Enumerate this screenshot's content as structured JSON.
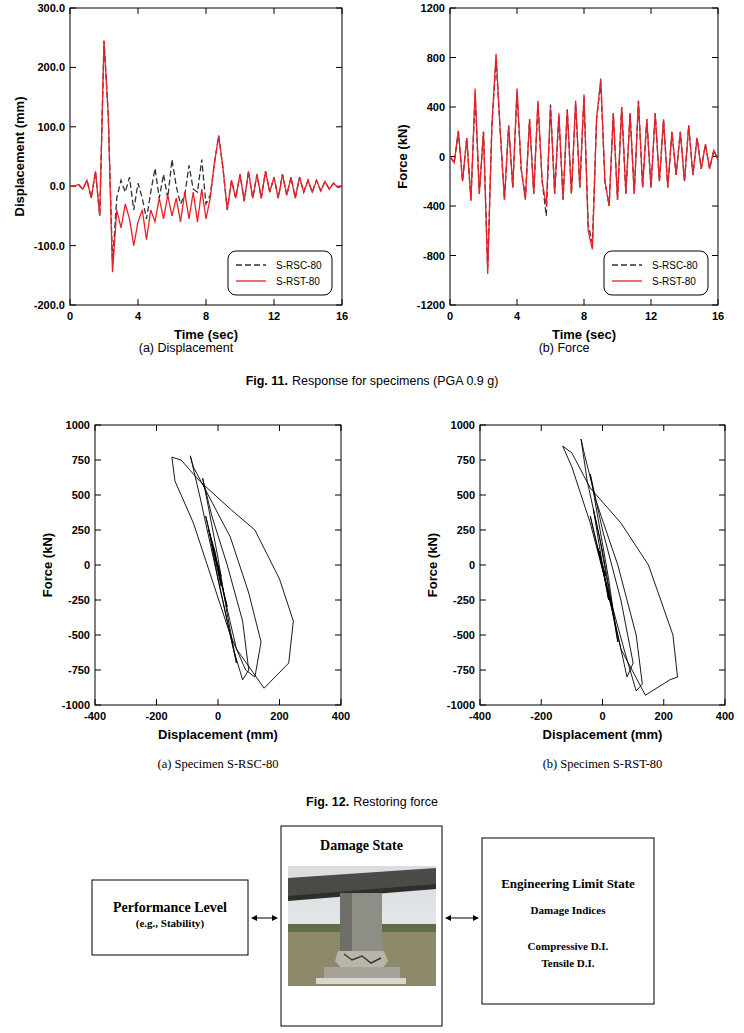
{
  "chart_data": [
    {
      "type": "line",
      "title": "(a) Displacement",
      "x_label": "Time (sec)",
      "y_label": "Displacement (mm)",
      "x": [
        0,
        0.25,
        0.5,
        0.75,
        1,
        1.25,
        1.5,
        1.75,
        2,
        2.25,
        2.5,
        2.75,
        3,
        3.25,
        3.5,
        3.75,
        4,
        4.25,
        4.5,
        4.75,
        5,
        5.25,
        5.5,
        5.75,
        6,
        6.25,
        6.5,
        6.75,
        7,
        7.25,
        7.5,
        7.75,
        8,
        8.25,
        8.5,
        8.75,
        9,
        9.25,
        9.5,
        9.75,
        10,
        10.25,
        10.5,
        10.75,
        11,
        11.25,
        11.5,
        11.75,
        12,
        12.25,
        12.5,
        12.75,
        13,
        13.25,
        13.5,
        13.75,
        14,
        14.25,
        14.5,
        14.75,
        15,
        15.25,
        15.5,
        15.75,
        16
      ],
      "series": [
        {
          "name": "S-RSC-80",
          "color": "#333333",
          "line_style": "dashed",
          "values": [
            0,
            0,
            3,
            -5,
            10,
            -20,
            25,
            -50,
            245,
            120,
            -130,
            -20,
            10,
            -10,
            15,
            -40,
            5,
            -20,
            -55,
            -10,
            30,
            -20,
            20,
            -20,
            45,
            0,
            -30,
            -15,
            35,
            -5,
            -10,
            45,
            -30,
            -15,
            40,
            85,
            30,
            -40,
            10,
            -20,
            20,
            -25,
            25,
            -20,
            20,
            -20,
            25,
            -10,
            15,
            -20,
            20,
            -15,
            15,
            -20,
            15,
            -10,
            10,
            -10,
            10,
            -8,
            8,
            -5,
            5,
            -2,
            0
          ]
        },
        {
          "name": "S-RST-80",
          "color": "#e8202a",
          "line_style": "solid",
          "values": [
            0,
            0,
            3,
            -5,
            10,
            -20,
            25,
            -50,
            245,
            120,
            -145,
            -40,
            -70,
            -30,
            -55,
            -100,
            -60,
            -40,
            -90,
            -40,
            -60,
            -20,
            -55,
            -15,
            -50,
            -20,
            -60,
            -10,
            -55,
            -10,
            -60,
            -5,
            -55,
            -20,
            40,
            85,
            30,
            -40,
            10,
            -20,
            20,
            -25,
            25,
            -20,
            20,
            -20,
            25,
            -10,
            15,
            -20,
            20,
            -15,
            15,
            -20,
            15,
            -10,
            10,
            -10,
            10,
            -8,
            8,
            -5,
            5,
            -2,
            0
          ]
        }
      ],
      "xlim": [
        0,
        16
      ],
      "xticks": [
        0,
        4,
        8,
        12,
        16
      ],
      "ylim": [
        -200,
        300
      ],
      "yticks": [
        {
          "value": -200,
          "label": "-200.0"
        },
        {
          "value": -100,
          "label": "-100.0"
        },
        {
          "value": 0,
          "label": "0.0"
        },
        {
          "value": 100,
          "label": "100.0"
        },
        {
          "value": 200,
          "label": "200.0"
        },
        {
          "value": 300,
          "label": "300.0"
        }
      ],
      "grid": false,
      "legend": "lower right"
    },
    {
      "type": "line",
      "title": "(b) Force",
      "x_label": "Time (sec)",
      "y_label": "Force (kN)",
      "x": [
        0,
        0.25,
        0.5,
        0.75,
        1,
        1.25,
        1.5,
        1.75,
        2,
        2.25,
        2.5,
        2.75,
        3,
        3.25,
        3.5,
        3.75,
        4,
        4.25,
        4.5,
        4.75,
        5,
        5.25,
        5.5,
        5.75,
        6,
        6.25,
        6.5,
        6.75,
        7,
        7.25,
        7.5,
        7.75,
        8,
        8.25,
        8.5,
        8.75,
        9,
        9.25,
        9.5,
        9.75,
        10,
        10.25,
        10.5,
        10.75,
        11,
        11.25,
        11.5,
        11.75,
        12,
        12.25,
        12.5,
        12.75,
        13,
        13.25,
        13.5,
        13.75,
        14,
        14.25,
        14.5,
        14.75,
        15,
        15.25,
        15.5,
        15.75,
        16
      ],
      "series": [
        {
          "name": "S-RSC-80",
          "color": "#333333",
          "line_style": "dashed",
          "values": [
            0,
            -50,
            200,
            -200,
            150,
            -350,
            500,
            -300,
            200,
            -900,
            250,
            780,
            200,
            -350,
            250,
            -250,
            520,
            -100,
            -330,
            300,
            -300,
            430,
            -200,
            -480,
            420,
            -300,
            330,
            -350,
            380,
            -300,
            430,
            -250,
            480,
            -550,
            -700,
            300,
            600,
            -200,
            -400,
            350,
            -350,
            400,
            -300,
            350,
            -300,
            450,
            -250,
            300,
            -250,
            350,
            -200,
            300,
            -250,
            200,
            -150,
            200,
            -200,
            250,
            -150,
            150,
            -100,
            100,
            -100,
            50,
            -30
          ]
        },
        {
          "name": "S-RST-80",
          "color": "#e8202a",
          "line_style": "solid",
          "values": [
            0,
            -50,
            210,
            -200,
            150,
            -360,
            550,
            -300,
            200,
            -950,
            250,
            830,
            200,
            -350,
            250,
            -250,
            550,
            -100,
            -350,
            300,
            -300,
            450,
            -200,
            -400,
            400,
            -300,
            350,
            -350,
            380,
            -300,
            450,
            -250,
            500,
            -600,
            -750,
            300,
            630,
            -200,
            -400,
            350,
            -350,
            400,
            -300,
            350,
            -300,
            450,
            -250,
            300,
            -250,
            350,
            -200,
            300,
            -250,
            200,
            -150,
            200,
            -200,
            250,
            -150,
            150,
            -100,
            100,
            -100,
            50,
            -30
          ]
        }
      ],
      "xlim": [
        0,
        16
      ],
      "xticks": [
        0,
        4,
        8,
        12,
        16
      ],
      "ylim": [
        -1200,
        1200
      ],
      "yticks": [
        -1200,
        -800,
        -400,
        0,
        400,
        800,
        1200
      ],
      "grid": false,
      "legend": "lower right"
    },
    {
      "type": "line",
      "title": "(a) Specimen S-RSC-80",
      "x_label": "Displacement (mm)",
      "y_label": "Force (kN)",
      "color": "#000000",
      "x": [
        0,
        10,
        -15,
        30,
        -40,
        60,
        150,
        230,
        245,
        200,
        120,
        40,
        -60,
        -120,
        -150,
        -140,
        -80,
        -20,
        40,
        90,
        120,
        140,
        100,
        40,
        -20,
        -80,
        -90,
        -60,
        -20,
        20,
        50,
        80,
        100,
        80,
        30,
        -20,
        -50,
        -30,
        0,
        30,
        60,
        40,
        0,
        -30,
        -10,
        10,
        -20,
        0
      ],
      "values": [
        0,
        -80,
        120,
        -300,
        350,
        -600,
        -880,
        -700,
        -400,
        -100,
        250,
        400,
        600,
        750,
        770,
        600,
        300,
        -100,
        -500,
        -750,
        -800,
        -550,
        -200,
        200,
        450,
        700,
        780,
        500,
        100,
        -300,
        -600,
        -820,
        -750,
        -400,
        0,
        350,
        620,
        400,
        50,
        -350,
        -700,
        -500,
        -100,
        250,
        100,
        -150,
        150,
        -20
      ],
      "xlim": [
        -400,
        400
      ],
      "xticks": [
        -400,
        -200,
        0,
        200,
        400
      ],
      "ylim": [
        -1000,
        1000
      ],
      "yticks": [
        -1000,
        -750,
        -500,
        -250,
        0,
        250,
        500,
        750,
        1000
      ],
      "grid": false
    },
    {
      "type": "line",
      "title": "(b) Specimen S-RST-80",
      "x_label": "Displacement (mm)",
      "y_label": "Force (kN)",
      "color": "#000000",
      "x": [
        0,
        10,
        -15,
        30,
        -40,
        60,
        140,
        220,
        245,
        230,
        150,
        60,
        -40,
        -100,
        -130,
        -100,
        -40,
        20,
        70,
        110,
        130,
        110,
        50,
        -20,
        -60,
        -70,
        -50,
        0,
        40,
        80,
        100,
        60,
        0,
        -40,
        -20,
        20,
        50,
        30,
        -10,
        -30,
        0,
        20,
        -10,
        0
      ],
      "values": [
        0,
        -80,
        120,
        -300,
        350,
        -600,
        -930,
        -820,
        -800,
        -500,
        0,
        300,
        550,
        800,
        850,
        700,
        300,
        -200,
        -600,
        -900,
        -850,
        -500,
        0,
        450,
        800,
        900,
        600,
        100,
        -400,
        -800,
        -700,
        -250,
        250,
        650,
        400,
        -100,
        -550,
        -300,
        200,
        400,
        0,
        -250,
        100,
        -10
      ],
      "xlim": [
        -400,
        400
      ],
      "xticks": [
        -400,
        -200,
        0,
        200,
        400
      ],
      "ylim": [
        -1000,
        1000
      ],
      "yticks": [
        -1000,
        -750,
        -500,
        -250,
        0,
        250,
        500,
        750,
        1000
      ],
      "grid": false
    }
  ],
  "figure_captions": [
    {
      "label": "Fig. 11.",
      "text": "Response for specimens (PGA 0.9 g)"
    },
    {
      "label": "Fig. 12.",
      "text": "Restoring force"
    }
  ],
  "diagram": {
    "nodes": [
      {
        "title": "Performance Level",
        "subtitle": "(e.g., Stability)"
      },
      {
        "title": "Damage State"
      },
      {
        "title": "Engineering Limit State",
        "lines": [
          "Damage Indices",
          "Compressive D.I.",
          "Tensile D.I."
        ]
      }
    ]
  }
}
